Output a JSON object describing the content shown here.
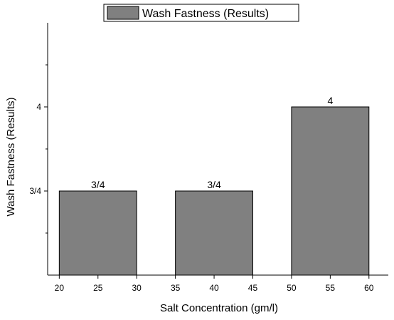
{
  "chart_data": {
    "type": "bar",
    "categories": [
      "20-30",
      "35-45",
      "50-60"
    ],
    "x_ranges": [
      [
        20,
        30
      ],
      [
        35,
        45
      ],
      [
        50,
        60
      ]
    ],
    "values": [
      3.75,
      3.75,
      4
    ],
    "data_labels": [
      "3/4",
      "3/4",
      "4"
    ],
    "series": [
      {
        "name": "Wash Fastness (Results)",
        "values": [
          3.75,
          3.75,
          4
        ]
      }
    ],
    "xlabel": "Salt Concentration (gm/l)",
    "ylabel": "Wash Fastness (Results)",
    "xlim": [
      18.5,
      62.5
    ],
    "ylim": [
      3.5,
      4.25
    ],
    "x_ticks": [
      20,
      25,
      30,
      35,
      40,
      45,
      50,
      55,
      60
    ],
    "y_ticks": [
      {
        "value": 3.75,
        "label": "3/4"
      },
      {
        "value": 4,
        "label": "4"
      }
    ],
    "y_minor_ticks": [
      3.625,
      3.875,
      4.125
    ],
    "legend_position": "top-center",
    "bar_color": "#808080",
    "grid": false
  }
}
